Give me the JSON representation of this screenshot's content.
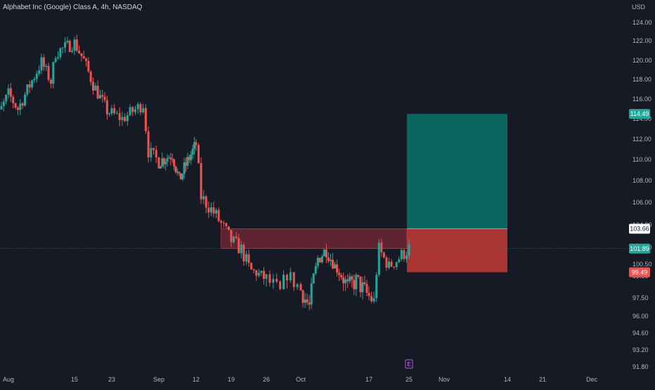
{
  "header": {
    "title": "Alphabet Inc (Google) Class A, 4h, NASDAQ",
    "currency": "USD"
  },
  "colors": {
    "background": "#161a25",
    "up": "#26a69a",
    "down": "#ef5350",
    "target_zone": "#0b6660",
    "stop_zone": "#a83532",
    "entry_zone": "#6b2634",
    "axis_text": "#b2b5be"
  },
  "chart_data": {
    "type": "candlestick",
    "title": "Alphabet Inc (Google) Class A, 4h, NASDAQ",
    "ylabel": "USD",
    "ylim": [
      91.0,
      125.2
    ],
    "y_ticks": [
      "124.00",
      "122.00",
      "120.00",
      "118.00",
      "116.00",
      "114.00",
      "112.00",
      "110.00",
      "108.00",
      "106.00",
      "104.00",
      "102.00",
      "100.50",
      "99.00",
      "97.50",
      "96.00",
      "94.60",
      "93.20",
      "91.80"
    ],
    "x_ticks": [
      "Aug",
      "15",
      "23",
      "Sep",
      "12",
      "19",
      "26",
      "Oct",
      "17",
      "25",
      "Nov",
      "14",
      "21",
      "Dec"
    ],
    "price_labels": [
      {
        "label": "114.49",
        "value": 114.49,
        "color": "#26a69a"
      },
      {
        "label": "103.66",
        "value": 103.66,
        "color": "#ffffff"
      },
      {
        "label": "101.89",
        "value": 101.89,
        "color": "#26a69a"
      },
      {
        "label": "99.49",
        "value": 99.49,
        "color": "#ef5350"
      }
    ],
    "earnings_marker": "E",
    "position": {
      "entry": 103.66,
      "target": 114.49,
      "stop": 99.49,
      "start": "Oct 25",
      "end": "Nov 14"
    },
    "resistance_zone": {
      "top": 103.66,
      "bottom": 101.89
    },
    "last_price": 101.89,
    "path_anchors": [
      {
        "x": "Jul 28",
        "price": 112.5
      },
      {
        "x": "Aug 1",
        "price": 116.5
      },
      {
        "x": "Aug 3",
        "price": 115.0
      },
      {
        "x": "Aug 8",
        "price": 119.8
      },
      {
        "x": "Aug 10",
        "price": 117.8
      },
      {
        "x": "Aug 11",
        "price": 120.8
      },
      {
        "x": "Aug 15",
        "price": 121.8
      },
      {
        "x": "Aug 17",
        "price": 120.0
      },
      {
        "x": "Aug 19",
        "price": 117.5
      },
      {
        "x": "Aug 22",
        "price": 114.8
      },
      {
        "x": "Aug 25",
        "price": 114.0
      },
      {
        "x": "Aug 29",
        "price": 115.5
      },
      {
        "x": "Aug 30",
        "price": 110.8
      },
      {
        "x": "Sep 1",
        "price": 109.8
      },
      {
        "x": "Sep 5",
        "price": 110.5
      },
      {
        "x": "Sep 7",
        "price": 108.0
      },
      {
        "x": "Sep 9",
        "price": 109.5
      },
      {
        "x": "Sep 12",
        "price": 111.5
      },
      {
        "x": "Sep 13",
        "price": 106.5
      },
      {
        "x": "Sep 16",
        "price": 104.8
      },
      {
        "x": "Sep 19",
        "price": 102.6
      },
      {
        "x": "Sep 21",
        "price": 101.8
      },
      {
        "x": "Sep 23",
        "price": 99.7
      },
      {
        "x": "Sep 26",
        "price": 98.8
      },
      {
        "x": "Sep 28",
        "price": 97.8
      },
      {
        "x": "Sep 29",
        "price": 99.3
      },
      {
        "x": "Oct 3",
        "price": 96.8
      },
      {
        "x": "Oct 5",
        "price": 101.0
      },
      {
        "x": "Oct 7",
        "price": 101.8
      },
      {
        "x": "Oct 10",
        "price": 99.5
      },
      {
        "x": "Oct 12",
        "price": 98.2
      },
      {
        "x": "Oct 14",
        "price": 98.7
      },
      {
        "x": "Oct 18",
        "price": 97.2
      },
      {
        "x": "Oct 19",
        "price": 101.8
      },
      {
        "x": "Oct 21",
        "price": 100.2
      },
      {
        "x": "Oct 24",
        "price": 101.5
      },
      {
        "x": "Oct 25",
        "price": 101.9
      }
    ]
  }
}
